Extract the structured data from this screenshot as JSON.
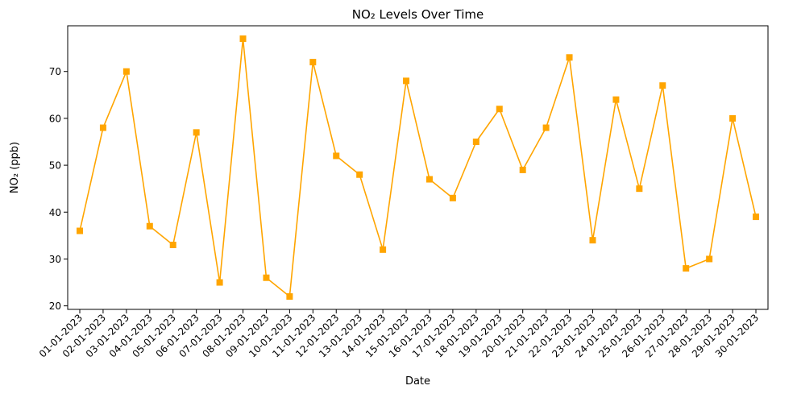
{
  "chart_data": {
    "type": "line",
    "title": "NO₂ Levels Over Time",
    "xlabel": "Date",
    "ylabel": "NO₂ (ppb)",
    "categories": [
      "01-01-2023",
      "02-01-2023",
      "03-01-2023",
      "04-01-2023",
      "05-01-2023",
      "06-01-2023",
      "07-01-2023",
      "08-01-2023",
      "09-01-2023",
      "10-01-2023",
      "11-01-2023",
      "12-01-2023",
      "13-01-2023",
      "14-01-2023",
      "15-01-2023",
      "16-01-2023",
      "17-01-2023",
      "18-01-2023",
      "19-01-2023",
      "20-01-2023",
      "21-01-2023",
      "22-01-2023",
      "23-01-2023",
      "24-01-2023",
      "25-01-2023",
      "26-01-2023",
      "27-01-2023",
      "28-01-2023",
      "29-01-2023",
      "30-01-2023"
    ],
    "series": [
      {
        "values": [
          36,
          58,
          70,
          37,
          33,
          57,
          25,
          77,
          26,
          22,
          72,
          52,
          48,
          32,
          68,
          47,
          43,
          55,
          62,
          49,
          58,
          73,
          34,
          64,
          45,
          67,
          28,
          30,
          60,
          39
        ],
        "color": "#FFA500",
        "marker": "square"
      }
    ],
    "ylim": [
      19.25,
      79.75
    ],
    "yticks": [
      20,
      30,
      40,
      50,
      60,
      70
    ],
    "grid": false,
    "legend": "none"
  }
}
